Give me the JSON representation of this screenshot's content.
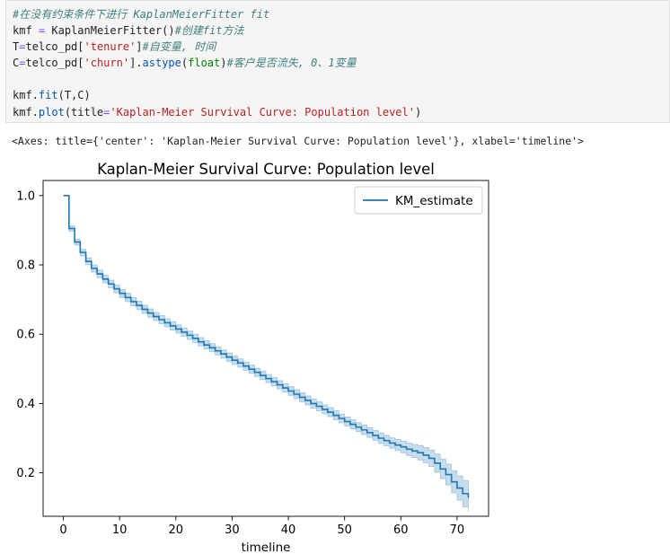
{
  "code_cell": {
    "lines": [
      [
        {
          "cls": "c-comment",
          "text": "#在没有约束条件下进行 KaplanMeierFitter fit"
        }
      ],
      [
        {
          "cls": "c-name",
          "text": "kmf "
        },
        {
          "cls": "c-op",
          "text": "="
        },
        {
          "cls": "c-name",
          "text": " KaplanMeierFitter()"
        },
        {
          "cls": "c-comment",
          "text": "#创建fit方法"
        }
      ],
      [
        {
          "cls": "c-name",
          "text": "T"
        },
        {
          "cls": "c-op",
          "text": "="
        },
        {
          "cls": "c-name",
          "text": "telco_pd["
        },
        {
          "cls": "c-string",
          "text": "'tenure'"
        },
        {
          "cls": "c-name",
          "text": "]"
        },
        {
          "cls": "c-comment",
          "text": "#自变量, 时间"
        }
      ],
      [
        {
          "cls": "c-name",
          "text": "C"
        },
        {
          "cls": "c-op",
          "text": "="
        },
        {
          "cls": "c-name",
          "text": "telco_pd["
        },
        {
          "cls": "c-string",
          "text": "'churn'"
        },
        {
          "cls": "c-name",
          "text": "]."
        },
        {
          "cls": "c-call",
          "text": "astype"
        },
        {
          "cls": "c-name",
          "text": "("
        },
        {
          "cls": "c-builtin",
          "text": "float"
        },
        {
          "cls": "c-name",
          "text": ")"
        },
        {
          "cls": "c-comment",
          "text": "#客户是否流失, 0、1变量"
        }
      ],
      [
        {
          "cls": "c-name",
          "text": ""
        }
      ],
      [
        {
          "cls": "c-name",
          "text": "kmf."
        },
        {
          "cls": "c-call",
          "text": "fit"
        },
        {
          "cls": "c-name",
          "text": "(T,C)"
        }
      ],
      [
        {
          "cls": "c-name",
          "text": "kmf."
        },
        {
          "cls": "c-call",
          "text": "plot"
        },
        {
          "cls": "c-name",
          "text": "(title"
        },
        {
          "cls": "c-op",
          "text": "="
        },
        {
          "cls": "c-string",
          "text": "'Kaplan-Meier Survival Curve: Population level'"
        },
        {
          "cls": "c-name",
          "text": ")"
        }
      ]
    ]
  },
  "output": {
    "repr": "<Axes: title={'center': 'Kaplan-Meier Survival Curve: Population level'}, xlabel='timeline'>"
  },
  "chart_data": {
    "type": "line",
    "title": "Kaplan-Meier Survival Curve: Population level",
    "xlabel": "timeline",
    "ylabel": "",
    "xlim": [
      -3.6,
      75.6
    ],
    "ylim": [
      0.0746,
      1.0436
    ],
    "xticks": [
      0,
      10,
      20,
      30,
      40,
      50,
      60,
      70
    ],
    "yticks": [
      0.2,
      0.4,
      0.6,
      0.8,
      1.0
    ],
    "ytick_labels": [
      "0.2",
      "0.4",
      "0.6",
      "0.8",
      "1.0"
    ],
    "grid": false,
    "legend_position": "upper-right",
    "series": [
      {
        "name": "KM_estimate",
        "color": "#1f77b4",
        "ci_color": "#1f77b4",
        "ci_alpha": 0.25,
        "step": "post",
        "x": [
          0,
          1,
          2,
          3,
          4,
          5,
          6,
          7,
          8,
          9,
          10,
          11,
          12,
          13,
          14,
          15,
          16,
          17,
          18,
          19,
          20,
          21,
          22,
          23,
          24,
          25,
          26,
          27,
          28,
          29,
          30,
          31,
          32,
          33,
          34,
          35,
          36,
          37,
          38,
          39,
          40,
          41,
          42,
          43,
          44,
          45,
          46,
          47,
          48,
          49,
          50,
          51,
          52,
          53,
          54,
          55,
          56,
          57,
          58,
          59,
          60,
          61,
          62,
          63,
          64,
          65,
          66,
          67,
          68,
          69,
          70,
          71,
          72
        ],
        "y": [
          1.0,
          0.905,
          0.866,
          0.836,
          0.81,
          0.79,
          0.774,
          0.759,
          0.745,
          0.731,
          0.718,
          0.706,
          0.694,
          0.683,
          0.672,
          0.661,
          0.651,
          0.642,
          0.633,
          0.624,
          0.615,
          0.606,
          0.597,
          0.588,
          0.578,
          0.569,
          0.561,
          0.552,
          0.543,
          0.534,
          0.525,
          0.517,
          0.508,
          0.499,
          0.49,
          0.481,
          0.472,
          0.463,
          0.454,
          0.445,
          0.436,
          0.427,
          0.418,
          0.409,
          0.4,
          0.392,
          0.383,
          0.375,
          0.366,
          0.357,
          0.348,
          0.34,
          0.332,
          0.324,
          0.316,
          0.308,
          0.3,
          0.293,
          0.286,
          0.28,
          0.275,
          0.268,
          0.263,
          0.258,
          0.251,
          0.242,
          0.228,
          0.211,
          0.195,
          0.174,
          0.156,
          0.14,
          0.128
        ],
        "ci_lower": [
          1.0,
          0.897,
          0.857,
          0.826,
          0.8,
          0.779,
          0.763,
          0.748,
          0.734,
          0.719,
          0.706,
          0.694,
          0.682,
          0.671,
          0.66,
          0.649,
          0.639,
          0.63,
          0.621,
          0.612,
          0.603,
          0.594,
          0.585,
          0.576,
          0.566,
          0.557,
          0.549,
          0.54,
          0.531,
          0.522,
          0.513,
          0.505,
          0.496,
          0.487,
          0.478,
          0.469,
          0.46,
          0.451,
          0.442,
          0.433,
          0.423,
          0.414,
          0.405,
          0.396,
          0.387,
          0.379,
          0.37,
          0.362,
          0.353,
          0.344,
          0.335,
          0.327,
          0.319,
          0.31,
          0.302,
          0.294,
          0.285,
          0.278,
          0.271,
          0.264,
          0.258,
          0.25,
          0.244,
          0.237,
          0.229,
          0.218,
          0.202,
          0.183,
          0.165,
          0.142,
          0.121,
          0.102,
          0.087
        ],
        "ci_upper": [
          1.0,
          0.912,
          0.874,
          0.845,
          0.82,
          0.8,
          0.785,
          0.77,
          0.756,
          0.742,
          0.729,
          0.718,
          0.706,
          0.695,
          0.684,
          0.673,
          0.663,
          0.654,
          0.645,
          0.636,
          0.627,
          0.618,
          0.609,
          0.6,
          0.59,
          0.581,
          0.573,
          0.564,
          0.555,
          0.546,
          0.537,
          0.529,
          0.52,
          0.511,
          0.502,
          0.493,
          0.484,
          0.475,
          0.466,
          0.457,
          0.449,
          0.44,
          0.431,
          0.422,
          0.413,
          0.405,
          0.396,
          0.388,
          0.379,
          0.37,
          0.361,
          0.353,
          0.345,
          0.338,
          0.33,
          0.322,
          0.315,
          0.308,
          0.301,
          0.296,
          0.292,
          0.286,
          0.282,
          0.279,
          0.273,
          0.266,
          0.254,
          0.239,
          0.225,
          0.206,
          0.191,
          0.178,
          0.169
        ]
      }
    ]
  }
}
